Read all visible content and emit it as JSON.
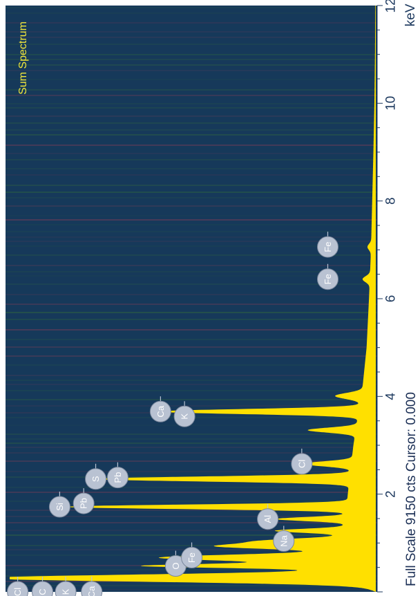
{
  "colors": {
    "plot_background": "#16395a",
    "spectrum_fill": "#ffe000",
    "title_color": "#f1e63a",
    "badge_fill": "#b9c2d2",
    "badge_stroke": "#7a879c",
    "axis_text": "#1e3a5f",
    "scanline_red": "#6a3c57",
    "scanline_green": "#2a5a46"
  },
  "chart_data": {
    "type": "area",
    "title": "Sum Spectrum",
    "xlabel": "keV",
    "ylabel": "",
    "xlim": [
      0,
      12
    ],
    "ylim": [
      0,
      9150
    ],
    "x_ticks": [
      {
        "value": 2,
        "label": "2"
      },
      {
        "value": 4,
        "label": "4"
      },
      {
        "value": 6,
        "label": "6"
      },
      {
        "value": 8,
        "label": "8"
      },
      {
        "value": 10,
        "label": "10"
      },
      {
        "value": 12,
        "label": "12"
      }
    ],
    "footer": "Full Scale 9150 cts Cursor: 0.000",
    "peaks": [
      {
        "x": 0.28,
        "height": 9150,
        "width": 0.07
      },
      {
        "x": 0.53,
        "height": 4700,
        "width": 0.04
      },
      {
        "x": 0.7,
        "height": 4300,
        "width": 0.06
      },
      {
        "x": 0.93,
        "height": 2900,
        "width": 0.05
      },
      {
        "x": 1.04,
        "height": 1900,
        "width": 0.05
      },
      {
        "x": 1.25,
        "height": 1700,
        "width": 0.04
      },
      {
        "x": 1.49,
        "height": 1750,
        "width": 0.04
      },
      {
        "x": 1.74,
        "height": 7000,
        "width": 0.045
      },
      {
        "x": 2.31,
        "height": 6300,
        "width": 0.05
      },
      {
        "x": 2.62,
        "height": 1200,
        "width": 0.05
      },
      {
        "x": 3.31,
        "height": 1200,
        "width": 0.05
      },
      {
        "x": 3.69,
        "height": 5000,
        "width": 0.05
      },
      {
        "x": 4.01,
        "height": 650,
        "width": 0.06
      },
      {
        "x": 6.4,
        "height": 180,
        "width": 0.06
      },
      {
        "x": 7.06,
        "height": 90,
        "width": 0.06
      }
    ],
    "background": [
      [
        0.15,
        400
      ],
      [
        0.6,
        1200
      ],
      [
        1.0,
        900
      ],
      [
        1.5,
        750
      ],
      [
        2.0,
        700
      ],
      [
        3.0,
        560
      ],
      [
        4.2,
        330
      ],
      [
        5.0,
        230
      ],
      [
        6.0,
        170
      ],
      [
        7.0,
        120
      ],
      [
        8.0,
        90
      ],
      [
        9.0,
        60
      ],
      [
        10.0,
        35
      ],
      [
        11.0,
        20
      ],
      [
        12.0,
        12
      ]
    ],
    "annotations": [
      {
        "label": "Cl",
        "x": 0.0,
        "level": 8950
      },
      {
        "label": "C",
        "x": 0.0,
        "level": 8330
      },
      {
        "label": "K",
        "x": 0.0,
        "level": 7750
      },
      {
        "label": "Ca",
        "x": 0.0,
        "level": 7100
      },
      {
        "label": "O",
        "x": 0.53,
        "level": 5000
      },
      {
        "label": "Fe",
        "x": 0.7,
        "level": 4600
      },
      {
        "label": "Na",
        "x": 1.04,
        "level": 2300
      },
      {
        "label": "Al",
        "x": 1.49,
        "level": 2700
      },
      {
        "label": "Si",
        "x": 1.74,
        "level": 7900
      },
      {
        "label": "Pb",
        "x": 1.81,
        "level": 7300
      },
      {
        "label": "S",
        "x": 2.31,
        "level": 7000
      },
      {
        "label": "Pb",
        "x": 2.34,
        "level": 6450
      },
      {
        "label": "Cl",
        "x": 2.62,
        "level": 1850
      },
      {
        "label": "Ca",
        "x": 3.69,
        "level": 5380
      },
      {
        "label": "K",
        "x": 3.59,
        "level": 4780
      },
      {
        "label": "Fe",
        "x": 6.4,
        "level": 1200
      },
      {
        "label": "Fe",
        "x": 7.06,
        "level": 1200
      }
    ]
  }
}
